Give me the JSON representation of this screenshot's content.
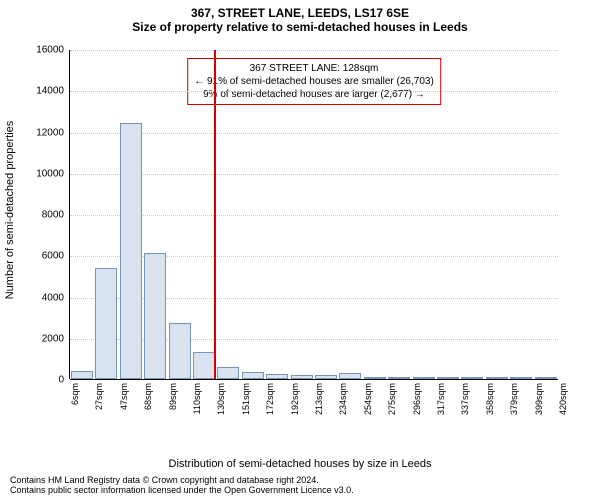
{
  "title": "367, STREET LANE, LEEDS, LS17 6SE",
  "subtitle": "Size of property relative to semi-detached houses in Leeds",
  "y_axis_label": "Number of semi-detached properties",
  "x_axis_label": "Distribution of semi-detached houses by size in Leeds",
  "footer_line1": "Contains HM Land Registry data © Crown copyright and database right 2024.",
  "footer_line2": "Contains public sector information licensed under the Open Government Licence v3.0.",
  "chart": {
    "type": "histogram",
    "y_max": 16000,
    "y_tick_step": 2000,
    "y_ticks": [
      0,
      2000,
      4000,
      6000,
      8000,
      10000,
      12000,
      14000,
      16000
    ],
    "x_labels": [
      "6sqm",
      "27sqm",
      "47sqm",
      "68sqm",
      "89sqm",
      "110sqm",
      "130sqm",
      "151sqm",
      "172sqm",
      "192sqm",
      "213sqm",
      "234sqm",
      "254sqm",
      "275sqm",
      "296sqm",
      "317sqm",
      "337sqm",
      "358sqm",
      "379sqm",
      "399sqm",
      "420sqm"
    ],
    "bars": [
      400,
      5400,
      12400,
      6100,
      2700,
      1300,
      600,
      350,
      250,
      180,
      180,
      300,
      40,
      30,
      25,
      20,
      15,
      12,
      10,
      8
    ],
    "bar_fill": "#d9e3f0",
    "bar_border": "#7893b8",
    "grid_color": "#c8c8c8",
    "background": "#ffffff",
    "reference_line_color": "#d40000",
    "reference_position_index": 5.9,
    "label_fontsize": 11,
    "tick_fontsize": 10,
    "title_fontsize": 12
  },
  "annotation": {
    "line1": "367 STREET LANE: 128sqm",
    "line2": "← 91% of semi-detached houses are smaller (26,703)",
    "line3": "9% of semi-detached houses are larger (2,677) →"
  }
}
